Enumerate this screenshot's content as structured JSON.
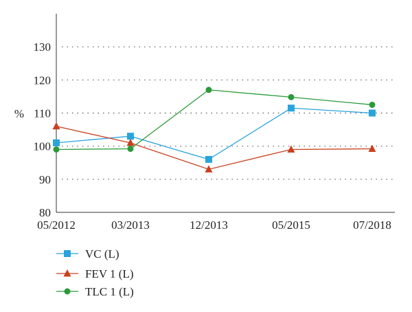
{
  "chart_data": {
    "type": "line",
    "title": "",
    "xlabel": "",
    "ylabel": "%",
    "categories": [
      "05/2012",
      "03/2013",
      "12/2013",
      "05/2015",
      "07/2018"
    ],
    "ylim": [
      80,
      140
    ],
    "yticks": [
      80,
      90,
      100,
      110,
      120,
      130
    ],
    "grid": "horizontal-dotted",
    "legend_position": "bottom-left",
    "series": [
      {
        "name": "VC (L)",
        "color": "#2aa3dc",
        "marker": "square",
        "values": [
          101,
          103,
          96,
          111.5,
          110
        ]
      },
      {
        "name": "FEV 1 (L)",
        "color": "#c8401e",
        "marker": "triangle",
        "values": [
          106,
          101,
          93,
          99,
          99.2
        ]
      },
      {
        "name": "TLC 1 (L)",
        "color": "#2b9a3a",
        "marker": "circle",
        "values": [
          99,
          99.2,
          117,
          114.8,
          112.5
        ]
      }
    ]
  }
}
